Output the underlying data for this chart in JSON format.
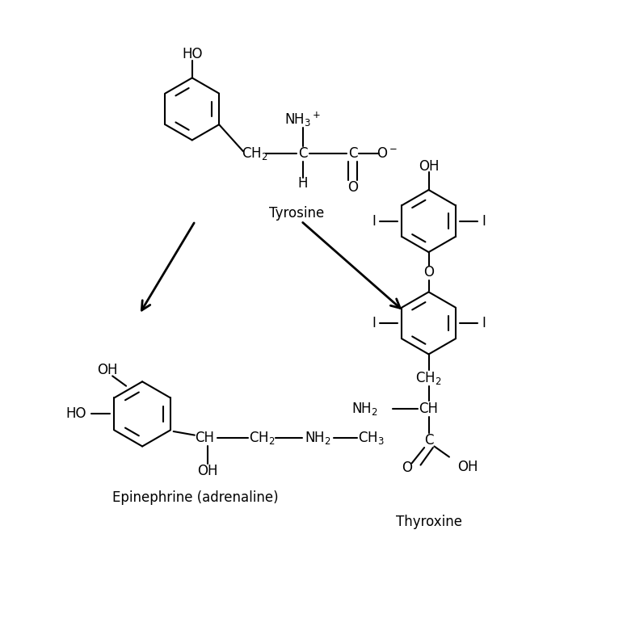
{
  "background_color": "#ffffff",
  "figsize": [
    7.76,
    7.86
  ],
  "dpi": 100,
  "lw": 1.5,
  "fs": 12,
  "tyrosine_label": "Tyrosine",
  "epinephrine_label": "Epinephrine (adrenaline)",
  "thyroxine_label": "Thyroxine",
  "xlim": [
    0,
    10
  ],
  "ylim": [
    0,
    10
  ]
}
